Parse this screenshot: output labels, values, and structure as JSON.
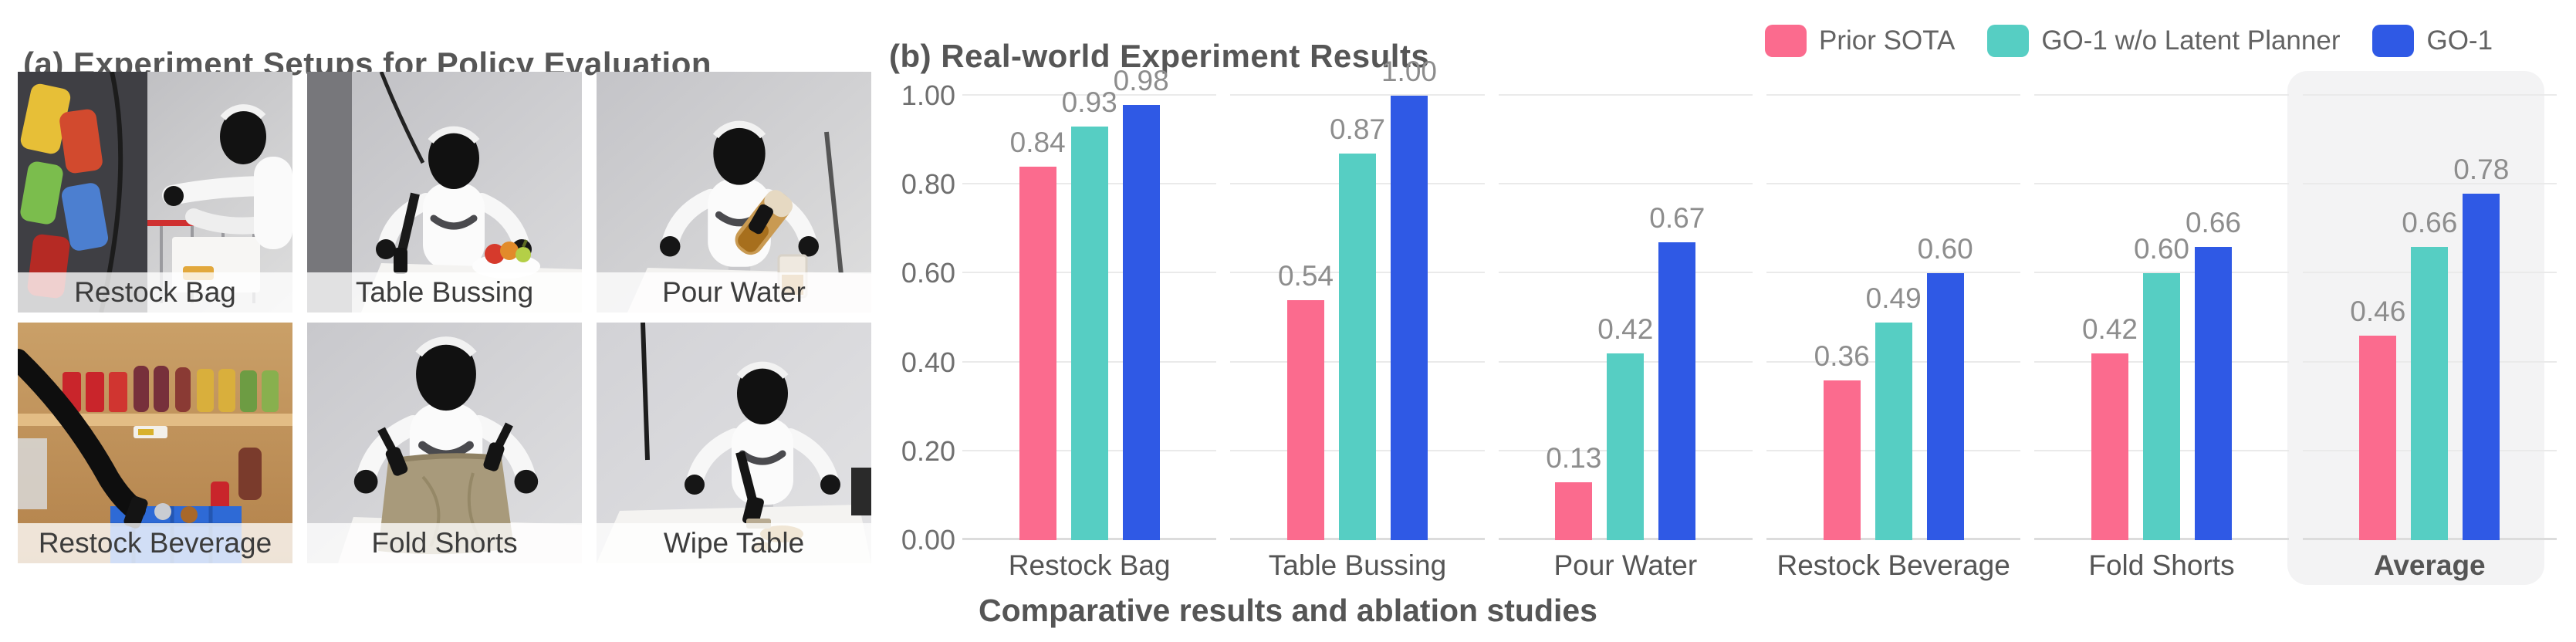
{
  "figure": {
    "panel_a": {
      "title": "(a) Experiment Setups for Policy Evaluation",
      "tiles": [
        {
          "label": "Restock Bag",
          "scene": "snack-shelf-robot"
        },
        {
          "label": "Table Bussing",
          "scene": "table-fruit-robot"
        },
        {
          "label": "Pour Water",
          "scene": "pour-drink-robot"
        },
        {
          "label": "Restock Beverage",
          "scene": "beverage-shelf-robot"
        },
        {
          "label": "Fold Shorts",
          "scene": "fold-shorts-robot"
        },
        {
          "label": "Wipe Table",
          "scene": "wipe-table-robot"
        }
      ]
    },
    "panel_b": {
      "title": "(b) Real-world Experiment Results",
      "caption": "Comparative results and ablation studies"
    }
  },
  "chart_data": {
    "type": "bar",
    "title": "(b) Real-world Experiment Results",
    "categories": [
      "Restock Bag",
      "Table Bussing",
      "Pour Water",
      "Restock Beverage",
      "Fold Shorts",
      "Average"
    ],
    "series": [
      {
        "name": "Prior SOTA",
        "color": "#FB6B8E",
        "values": [
          0.84,
          0.54,
          0.13,
          0.36,
          0.42,
          0.46
        ]
      },
      {
        "name": "GO-1 w/o Latent Planner",
        "color": "#56CEC3",
        "values": [
          0.93,
          0.87,
          0.42,
          0.49,
          0.6,
          0.66
        ]
      },
      {
        "name": "GO-1",
        "color": "#2F59E5",
        "values": [
          0.98,
          1.0,
          0.67,
          0.6,
          0.66,
          0.78
        ]
      }
    ],
    "ylim": [
      0,
      1
    ],
    "yticks": [
      "0.00",
      "0.20",
      "0.40",
      "0.60",
      "0.80",
      "1.00"
    ],
    "grid": true,
    "legend_position": "top-right",
    "highlight_category": "Average",
    "value_labels_decimals": 2,
    "colors": {
      "gridline": "#EAEAEA",
      "baseline": "#DCDCDC",
      "highlight_bg": "#F3F3F4",
      "value_label_text": "#8d8d8d",
      "tick_text": "#6f6f6f",
      "category_text": "#555555",
      "title_text": "#565656"
    }
  }
}
